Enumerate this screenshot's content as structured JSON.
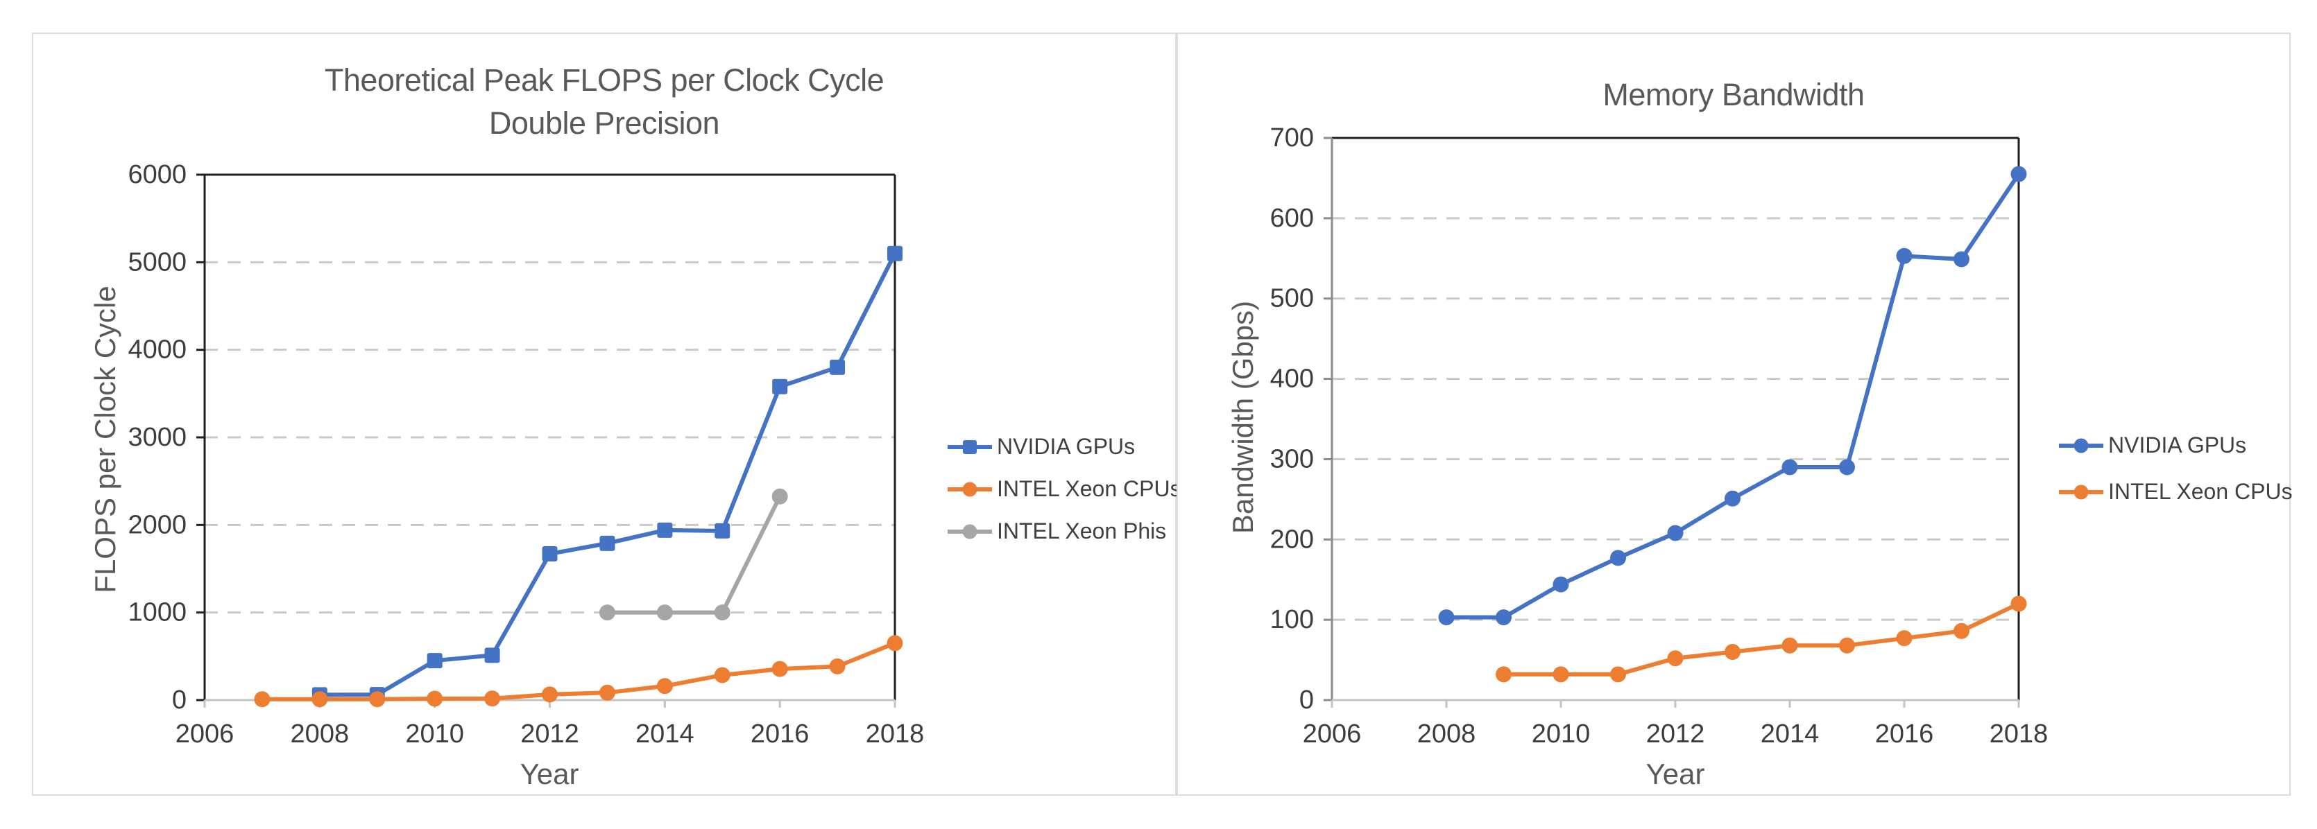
{
  "page": {
    "background": "#ffffff",
    "panel_border_color": "#dcdcdc",
    "accent_blue": "#4472C4",
    "accent_orange": "#ED7D31",
    "accent_gray": "#A5A5A5"
  },
  "chart_data": [
    {
      "type": "line",
      "title": "Theoretical Peak FLOPS per Clock Cycle",
      "subtitle": "Double Precision",
      "xlabel": "Year",
      "ylabel": "FLOPS per Clock Cycle",
      "xlim": [
        2006,
        2018
      ],
      "ylim": [
        0,
        6000
      ],
      "x_ticks": [
        "2006",
        "2008",
        "2010",
        "2012",
        "2014",
        "2016",
        "2018"
      ],
      "y_ticks": [
        "0",
        "1000",
        "2000",
        "3000",
        "4000",
        "5000",
        "6000"
      ],
      "grid": "horizontal-dashed",
      "legend_position": "right",
      "series": [
        {
          "name": "NVIDIA GPUs",
          "color": "#4472C4",
          "marker": "square",
          "points": [
            [
              2008,
              60
            ],
            [
              2009,
              62
            ],
            [
              2010,
              450
            ],
            [
              2011,
              512
            ],
            [
              2012,
              1670
            ],
            [
              2013,
              1790
            ],
            [
              2014,
              1940
            ],
            [
              2015,
              1932
            ],
            [
              2016,
              3580
            ],
            [
              2017,
              3800
            ],
            [
              2018,
              5100
            ]
          ]
        },
        {
          "name": "INTEL Xeon CPUs",
          "color": "#ED7D31",
          "marker": "circle",
          "points": [
            [
              2007,
              10
            ],
            [
              2008,
              10
            ],
            [
              2009,
              10
            ],
            [
              2010,
              16
            ],
            [
              2011,
              18
            ],
            [
              2012,
              64
            ],
            [
              2013,
              85
            ],
            [
              2014,
              160
            ],
            [
              2015,
              285
            ],
            [
              2016,
              355
            ],
            [
              2017,
              385
            ],
            [
              2018,
              650
            ]
          ]
        },
        {
          "name": "INTEL Xeon Phis",
          "color": "#A5A5A5",
          "marker": "circle",
          "points": [
            [
              2013,
              1000
            ],
            [
              2014,
              1000
            ],
            [
              2015,
              1000
            ],
            [
              2016,
              2325
            ]
          ]
        }
      ]
    },
    {
      "type": "line",
      "title": "Memory Bandwidth",
      "subtitle": "",
      "xlabel": "Year",
      "ylabel": "Bandwidth (Gbps)",
      "xlim": [
        2006,
        2018
      ],
      "ylim": [
        0,
        700
      ],
      "x_ticks": [
        "2006",
        "2008",
        "2010",
        "2012",
        "2014",
        "2016",
        "2018"
      ],
      "y_ticks": [
        "0",
        "100",
        "200",
        "300",
        "400",
        "500",
        "600",
        "700"
      ],
      "grid": "horizontal-dashed",
      "legend_position": "right",
      "series": [
        {
          "name": "NVIDIA GPUs",
          "color": "#4472C4",
          "marker": "circle",
          "points": [
            [
              2008,
              103
            ],
            [
              2009,
              103
            ],
            [
              2010,
              144
            ],
            [
              2011,
              177
            ],
            [
              2012,
              208
            ],
            [
              2013,
              251
            ],
            [
              2014,
              290
            ],
            [
              2015,
              290
            ],
            [
              2016,
              553
            ],
            [
              2017,
              549
            ],
            [
              2018,
              655
            ]
          ]
        },
        {
          "name": "INTEL Xeon CPUs",
          "color": "#ED7D31",
          "marker": "circle",
          "points": [
            [
              2009,
              32
            ],
            [
              2010,
              32
            ],
            [
              2011,
              32
            ],
            [
              2012,
              52
            ],
            [
              2013,
              60
            ],
            [
              2014,
              68
            ],
            [
              2015,
              68
            ],
            [
              2016,
              77
            ],
            [
              2017,
              86
            ],
            [
              2018,
              120
            ]
          ]
        }
      ]
    }
  ]
}
